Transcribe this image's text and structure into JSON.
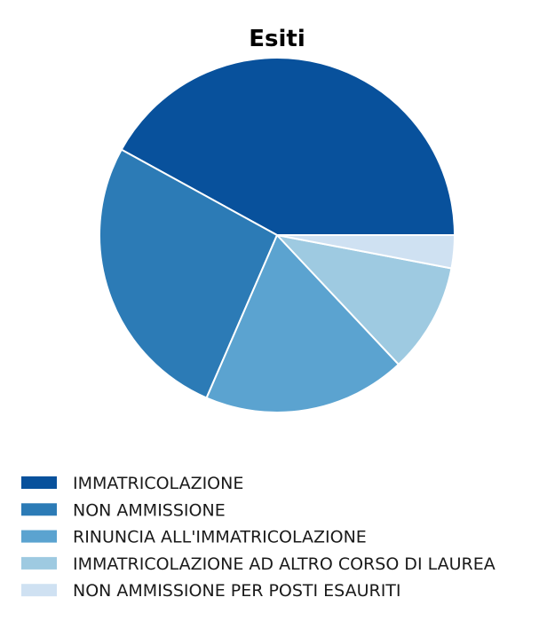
{
  "chart_data": {
    "type": "pie",
    "title": "Esiti",
    "start_angle_deg": 0,
    "direction": "counterclockwise",
    "slices": [
      {
        "label": "IMMATRICOLAZIONE",
        "value": 42.0,
        "color": "#08519c"
      },
      {
        "label": "NON AMMISSIONE",
        "value": 26.5,
        "color": "#2c7bb6"
      },
      {
        "label": "RINUNCIA ALL'IMMATRICOLAZIONE",
        "value": 18.5,
        "color": "#5ba3d0"
      },
      {
        "label": "IMMATRICOLAZIONE AD ALTRO CORSO DI LAUREA",
        "value": 10.0,
        "color": "#9ecae1"
      },
      {
        "label": "NON AMMISSIONE PER POSTI ESAURITI",
        "value": 3.0,
        "color": "#cfe1f2"
      }
    ],
    "legend_position": "bottom-left",
    "slice_edge_color": "#ffffff"
  }
}
